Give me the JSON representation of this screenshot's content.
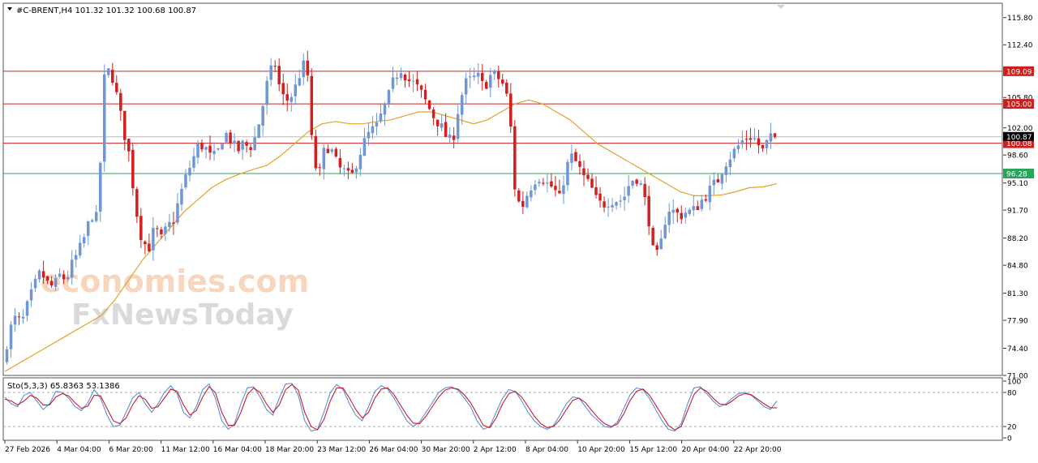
{
  "header": {
    "symbol_line": "#C-BRENT,H4  101.32 101.32 100.68 100.87"
  },
  "watermark": {
    "line1": "economies.com",
    "line2": "FxNewsToday"
  },
  "colors": {
    "bull": "#6f97d6",
    "bear": "#d21f1f",
    "ma": "#e3a12c",
    "resistance": "#cc2020",
    "support": "#2aa35a",
    "stoch_main": "#5b8fd8",
    "stoch_signal": "#c41f2f"
  },
  "chart_data": [
    {
      "type": "candlestick",
      "instrument": "#C-BRENT",
      "timeframe": "H4",
      "ohlc_last": {
        "open": 101.32,
        "high": 101.32,
        "low": 100.68,
        "close": 100.87
      },
      "current_price_label": "100.87",
      "ylim": [
        71.0,
        117.6
      ],
      "y_ticks": [
        "115.80",
        "112.40",
        "105.80",
        "102.00",
        "98.60",
        "95.10",
        "91.70",
        "88.20",
        "84.80",
        "81.30",
        "77.90",
        "74.40",
        "71.00"
      ],
      "x_ticks": [
        "27 Feb 2026",
        "4 Mar 04:00",
        "6 Mar 20:00",
        "11 Mar 12:00",
        "16 Mar 04:00",
        "18 Mar 20:00",
        "23 Mar 12:00",
        "26 Mar 04:00",
        "30 Mar 20:00",
        "2 Apr 12:00",
        "8 Apr 04:00",
        "10 Apr 20:00",
        "15 Apr 12:00",
        "20 Apr 04:00",
        "22 Apr 20:00"
      ],
      "horizontal_levels": [
        {
          "value": 109.09,
          "label": "109.09",
          "kind": "resistance"
        },
        {
          "value": 105.0,
          "label": "105.00",
          "kind": "resistance"
        },
        {
          "value": 100.08,
          "label": "100.08",
          "kind": "resistance"
        },
        {
          "value": 96.28,
          "label": "96.28",
          "kind": "support"
        }
      ],
      "price_path": [
        72.5,
        76.5,
        78.2,
        77.5,
        80.0,
        82.2,
        84.0,
        82.5,
        82.0,
        83.5,
        83.0,
        85.0,
        86.5,
        88.5,
        91.2,
        90.5,
        108.0,
        109.5,
        106.0,
        102.0,
        98.5,
        92.0,
        88.0,
        86.8,
        89.5,
        88.0,
        89.5,
        90.5,
        93.5,
        96.0,
        98.0,
        100.0,
        99.5,
        98.0,
        99.0,
        101.5,
        100.5,
        99.0,
        100.0,
        99.5,
        101.0,
        104.5,
        108.5,
        110.0,
        106.0,
        105.5,
        106.5,
        109.0,
        110.5,
        98.0,
        96.0,
        100.0,
        99.0,
        97.0,
        96.5,
        95.5,
        98.0,
        100.0,
        101.5,
        102.0,
        104.0,
        106.0,
        108.5,
        109.5,
        108.0,
        107.5,
        106.5,
        105.0,
        103.5,
        102.5,
        101.0,
        100.0,
        104.5,
        107.5,
        108.0,
        108.5,
        107.0,
        108.5,
        108.5,
        107.5,
        105.0,
        93.5,
        92.0,
        94.0,
        95.5,
        96.0,
        95.0,
        94.5,
        93.0,
        97.0,
        98.5,
        97.0,
        95.5,
        94.5,
        92.5,
        92.5,
        93.0,
        93.0,
        93.0,
        95.0,
        96.0,
        94.5,
        91.0,
        85.0,
        87.5,
        92.0,
        91.5,
        91.0,
        91.5,
        91.5,
        92.5,
        93.5,
        94.5,
        95.5,
        97.5,
        98.5,
        99.5,
        100.5,
        101.0,
        100.5,
        99.0,
        100.5,
        100.87
      ],
      "moving_average_path": [
        71.5,
        72.5,
        73.5,
        74.5,
        75.5,
        76.5,
        77.5,
        78.5,
        80.5,
        83.0,
        85.5,
        87.5,
        89.5,
        91.5,
        93.0,
        94.5,
        95.5,
        96.2,
        96.8,
        97.3,
        98.5,
        100.0,
        101.5,
        102.5,
        102.8,
        102.5,
        102.5,
        102.8,
        103.0,
        103.5,
        104.0,
        104.0,
        103.5,
        103.0,
        102.5,
        103.0,
        104.0,
        105.0,
        105.5,
        105.0,
        104.0,
        103.0,
        101.5,
        100.0,
        99.0,
        98.0,
        97.0,
        96.0,
        95.0,
        94.0,
        93.5,
        93.5,
        93.6,
        94.0,
        94.5,
        94.6,
        95.0
      ]
    },
    {
      "type": "line",
      "indicator": "Sto(5,3,3)",
      "label": "Sto(5,3,3) 65.8363 53.1386",
      "ylim": [
        0,
        100
      ],
      "y_ticks": [
        "100",
        "80",
        "20",
        "0"
      ],
      "levels": [
        80,
        20
      ],
      "series": [
        {
          "name": "main",
          "values": [
            72,
            60,
            55,
            75,
            80,
            65,
            50,
            60,
            82,
            80,
            70,
            55,
            48,
            62,
            85,
            70,
            40,
            20,
            22,
            45,
            70,
            80,
            60,
            45,
            60,
            80,
            92,
            78,
            45,
            35,
            55,
            85,
            95,
            70,
            30,
            15,
            25,
            60,
            88,
            90,
            72,
            50,
            40,
            70,
            95,
            96,
            75,
            30,
            12,
            15,
            45,
            80,
            94,
            85,
            60,
            40,
            30,
            55,
            82,
            92,
            86,
            70,
            50,
            30,
            20,
            28,
            45,
            62,
            80,
            88,
            90,
            84,
            70,
            55,
            30,
            15,
            20,
            45,
            70,
            85,
            82,
            65,
            45,
            30,
            20,
            15,
            22,
            40,
            60,
            72,
            70,
            55,
            40,
            30,
            20,
            18,
            28,
            52,
            76,
            88,
            85,
            70,
            50,
            30,
            15,
            12,
            25,
            60,
            88,
            90,
            78,
            65,
            55,
            60,
            70,
            78,
            80,
            75,
            65,
            55,
            50,
            65
          ]
        },
        {
          "name": "signal",
          "values": [
            68,
            65,
            58,
            65,
            75,
            70,
            58,
            58,
            72,
            78,
            74,
            62,
            52,
            56,
            75,
            74,
            52,
            30,
            25,
            35,
            58,
            74,
            68,
            52,
            55,
            70,
            86,
            82,
            58,
            40,
            48,
            72,
            90,
            80,
            45,
            22,
            22,
            45,
            76,
            88,
            80,
            60,
            45,
            58,
            85,
            94,
            84,
            45,
            20,
            14,
            32,
            65,
            88,
            88,
            70,
            50,
            35,
            45,
            70,
            86,
            88,
            76,
            58,
            40,
            26,
            25,
            38,
            55,
            72,
            84,
            88,
            86,
            76,
            62,
            42,
            22,
            18,
            35,
            60,
            78,
            82,
            72,
            55,
            38,
            25,
            18,
            20,
            32,
            50,
            66,
            70,
            62,
            48,
            35,
            25,
            20,
            24,
            42,
            66,
            82,
            86,
            76,
            58,
            40,
            22,
            14,
            20,
            48,
            76,
            88,
            82,
            70,
            60,
            58,
            65,
            74,
            78,
            76,
            68,
            60,
            53,
            53
          ]
        }
      ]
    }
  ]
}
